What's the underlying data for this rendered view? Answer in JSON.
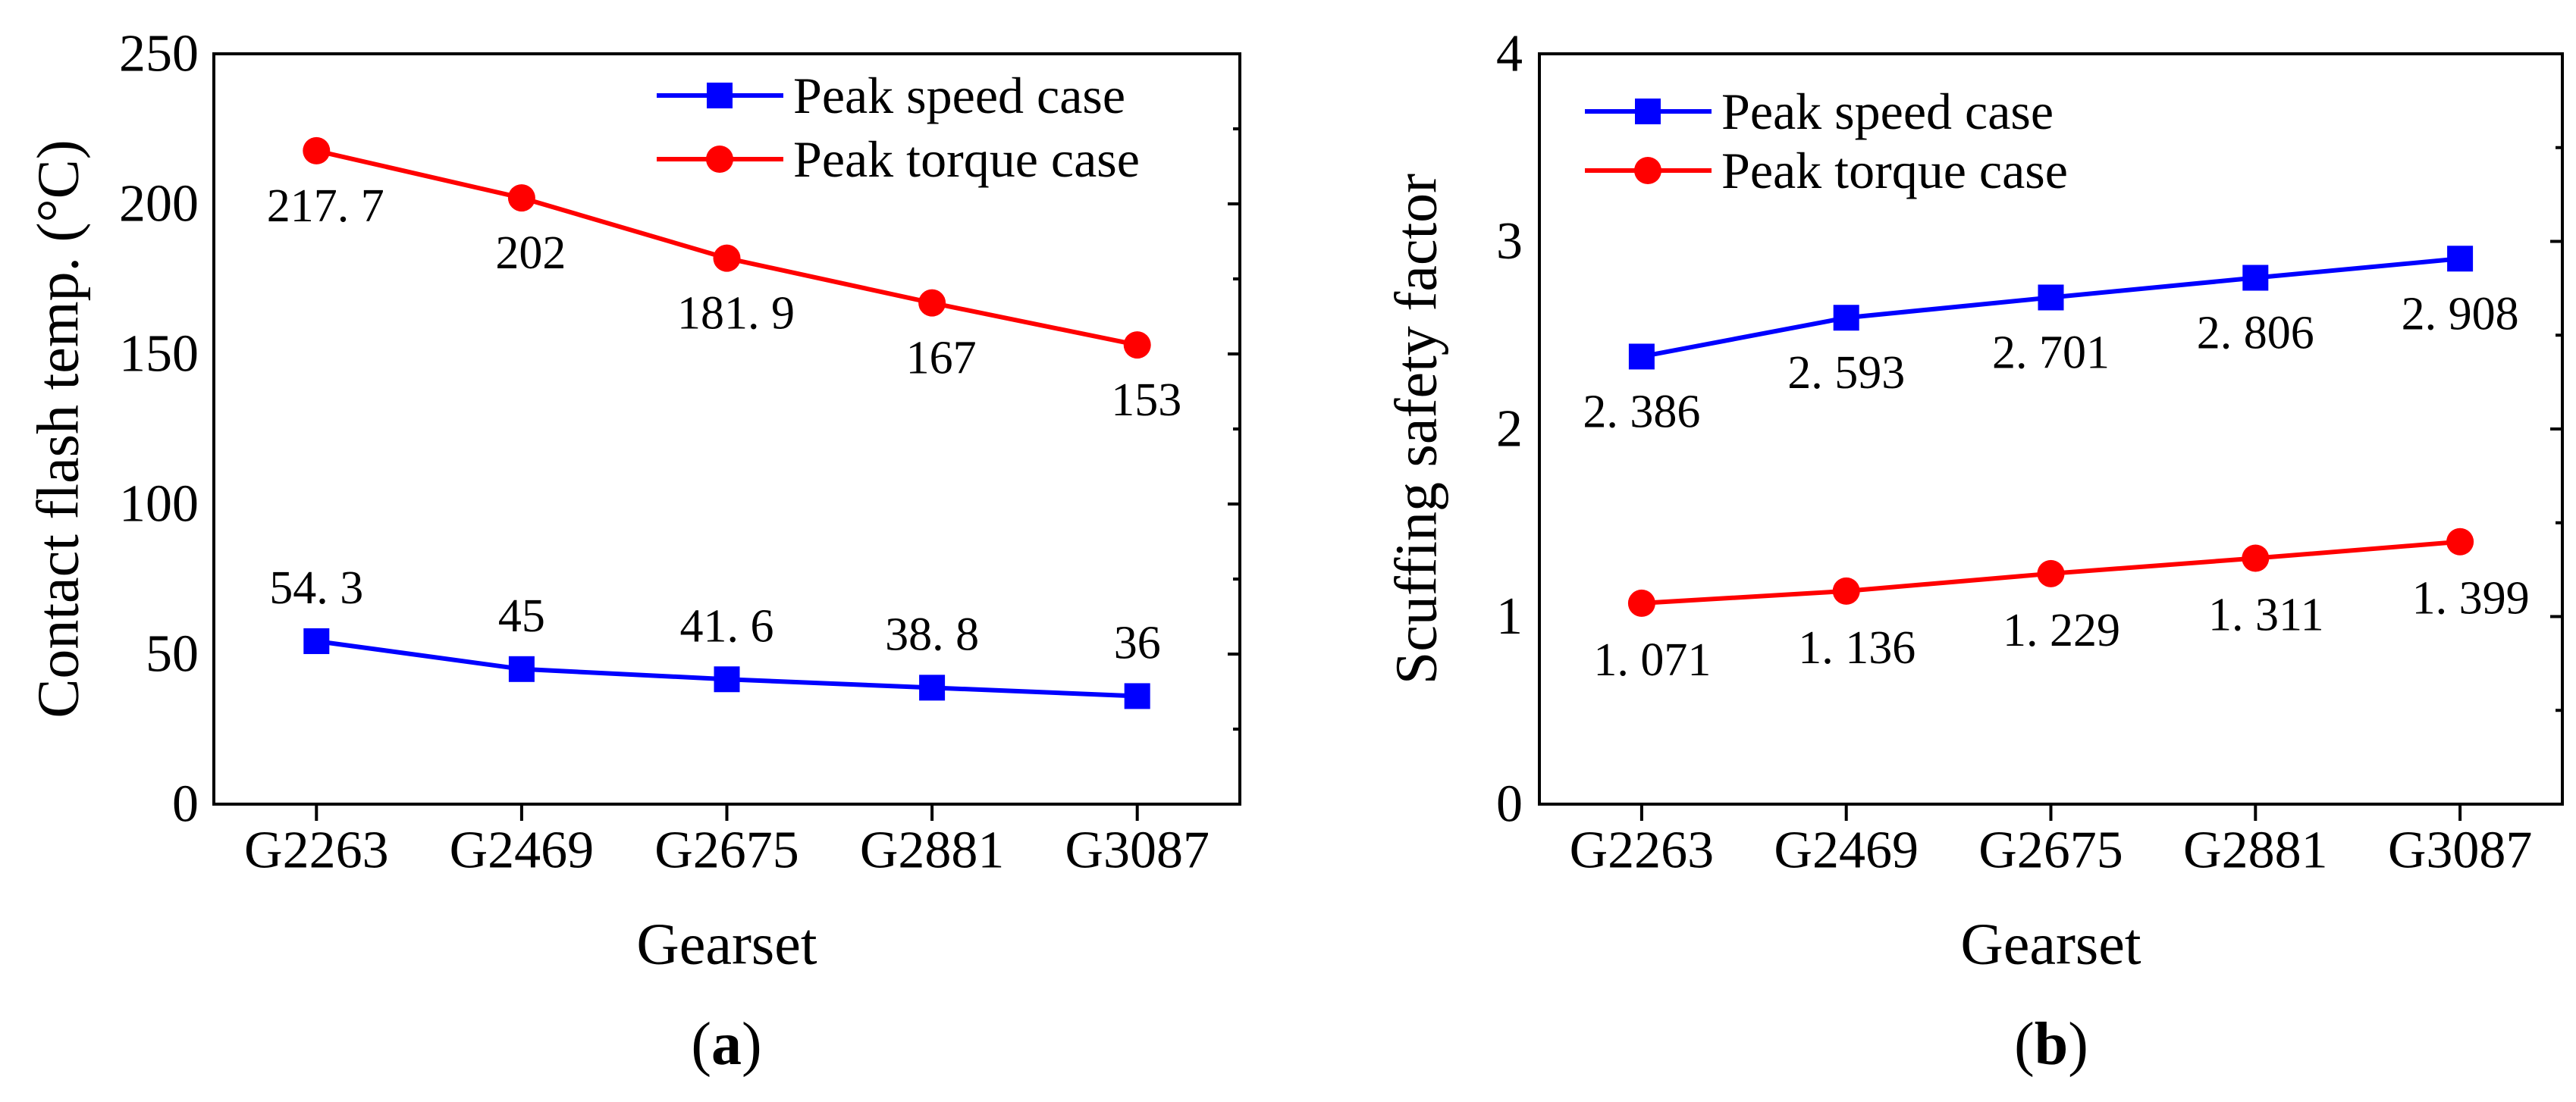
{
  "chart_data": [
    {
      "type": "line",
      "caption_letter": "a",
      "categories": [
        "G2263",
        "G2469",
        "G2675",
        "G2881",
        "G3087"
      ],
      "xlabel": "Gearset",
      "ylabel": "Contact flash temp. (°C)",
      "ylim": [
        0,
        250
      ],
      "yticks": [
        0,
        50,
        100,
        150,
        200,
        250
      ],
      "yminor_step": 25,
      "grid": false,
      "legend_position": "top-right",
      "series": [
        {
          "name": "Peak speed case",
          "color": "#0000ff",
          "marker": "square",
          "values": [
            54.3,
            45,
            41.6,
            38.8,
            36
          ],
          "labels": [
            "54. 3",
            "45",
            "41. 6",
            "38. 8",
            "36"
          ],
          "label_side": "above"
        },
        {
          "name": "Peak torque case",
          "color": "#ff0000",
          "marker": "circle",
          "values": [
            217.7,
            202,
            181.9,
            167,
            153
          ],
          "labels": [
            "217. 7",
            "202",
            "181. 9",
            "167",
            "153"
          ],
          "label_side": "below"
        }
      ]
    },
    {
      "type": "line",
      "caption_letter": "b",
      "categories": [
        "G2263",
        "G2469",
        "G2675",
        "G2881",
        "G3087"
      ],
      "xlabel": "Gearset",
      "ylabel": "Scuffing safety factor",
      "ylim": [
        0,
        4
      ],
      "yticks": [
        0,
        1,
        2,
        3,
        4
      ],
      "yminor_step": 0.5,
      "grid": false,
      "legend_position": "top-left",
      "series": [
        {
          "name": "Peak speed case",
          "color": "#0000ff",
          "marker": "square",
          "values": [
            2.386,
            2.593,
            2.701,
            2.806,
            2.908
          ],
          "labels": [
            "2. 386",
            "2. 593",
            "2. 701",
            "2. 806",
            "2. 908"
          ],
          "label_side": "below"
        },
        {
          "name": "Peak torque case",
          "color": "#ff0000",
          "marker": "circle",
          "values": [
            1.071,
            1.136,
            1.229,
            1.311,
            1.399
          ],
          "labels": [
            "1. 071",
            "1. 136",
            "1. 229",
            "1. 311",
            "1. 399"
          ],
          "label_side": "below"
        }
      ]
    }
  ]
}
